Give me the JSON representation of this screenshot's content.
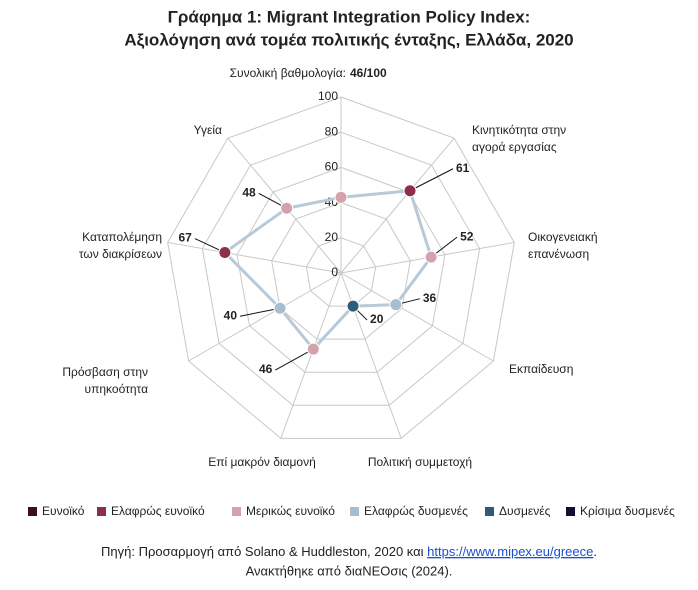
{
  "chart_data": {
    "type": "radar",
    "title": [
      "Γράφημα 1: Migrant Integration Policy Index:",
      "Αξιολόγηση ανά τομέα πολιτικής ένταξης, Ελλάδα, 2020"
    ],
    "subtitle": "Συνολική βαθμολογία:",
    "overall_score": "46/100",
    "categories": [
      null,
      "Κινητικότητα στην\nαγορά εργασίας",
      "Οικογενειακή\nεπανένωση",
      "Εκπαίδευση",
      "Πολιτική συμμετοχή",
      "Επί μακρόν διαμονή",
      "Πρόσβαση στην\nυπηκοότητα",
      "Καταπολέμηση\nτων διακρίσεων",
      "Υγεία"
    ],
    "values": [
      43,
      61,
      52,
      36,
      20,
      46,
      40,
      67,
      48
    ],
    "line_color": "#b8c9d8",
    "point_colors": [
      "#d3a3ad",
      "#8c2f49",
      "#d3a3ad",
      "#a7bdd0",
      "#2f5b7b",
      "#d3a3ad",
      "#a7bdd0",
      "#8c2f49",
      "#d3a3ad"
    ],
    "rlim": [
      0,
      100
    ],
    "rticks": [
      0,
      20,
      40,
      60,
      80,
      100
    ],
    "legend": [
      {
        "name": "Ευνοϊκό",
        "color": "#3b101c"
      },
      {
        "name": "Ελαφρώς ευνοϊκό",
        "color": "#8c2f49"
      },
      {
        "name": "Μερικώς ευνοϊκό",
        "color": "#d3a3ad"
      },
      {
        "name": "Ελαφρώς δυσμενές",
        "color": "#a7bdd0"
      },
      {
        "name": "Δυσμενές",
        "color": "#2f5b7b"
      },
      {
        "name": "Κρίσιμα δυσμενές",
        "color": "#0e1130"
      }
    ]
  },
  "source": {
    "prefix": "Πηγή: Προσαρμογή από Solano & Huddleston, 2020 και ",
    "link": "https://www.mipex.eu/greece",
    "suffix": ".",
    "line2": "Ανακτήθηκε από διαΝΕΟσις (2024)."
  }
}
